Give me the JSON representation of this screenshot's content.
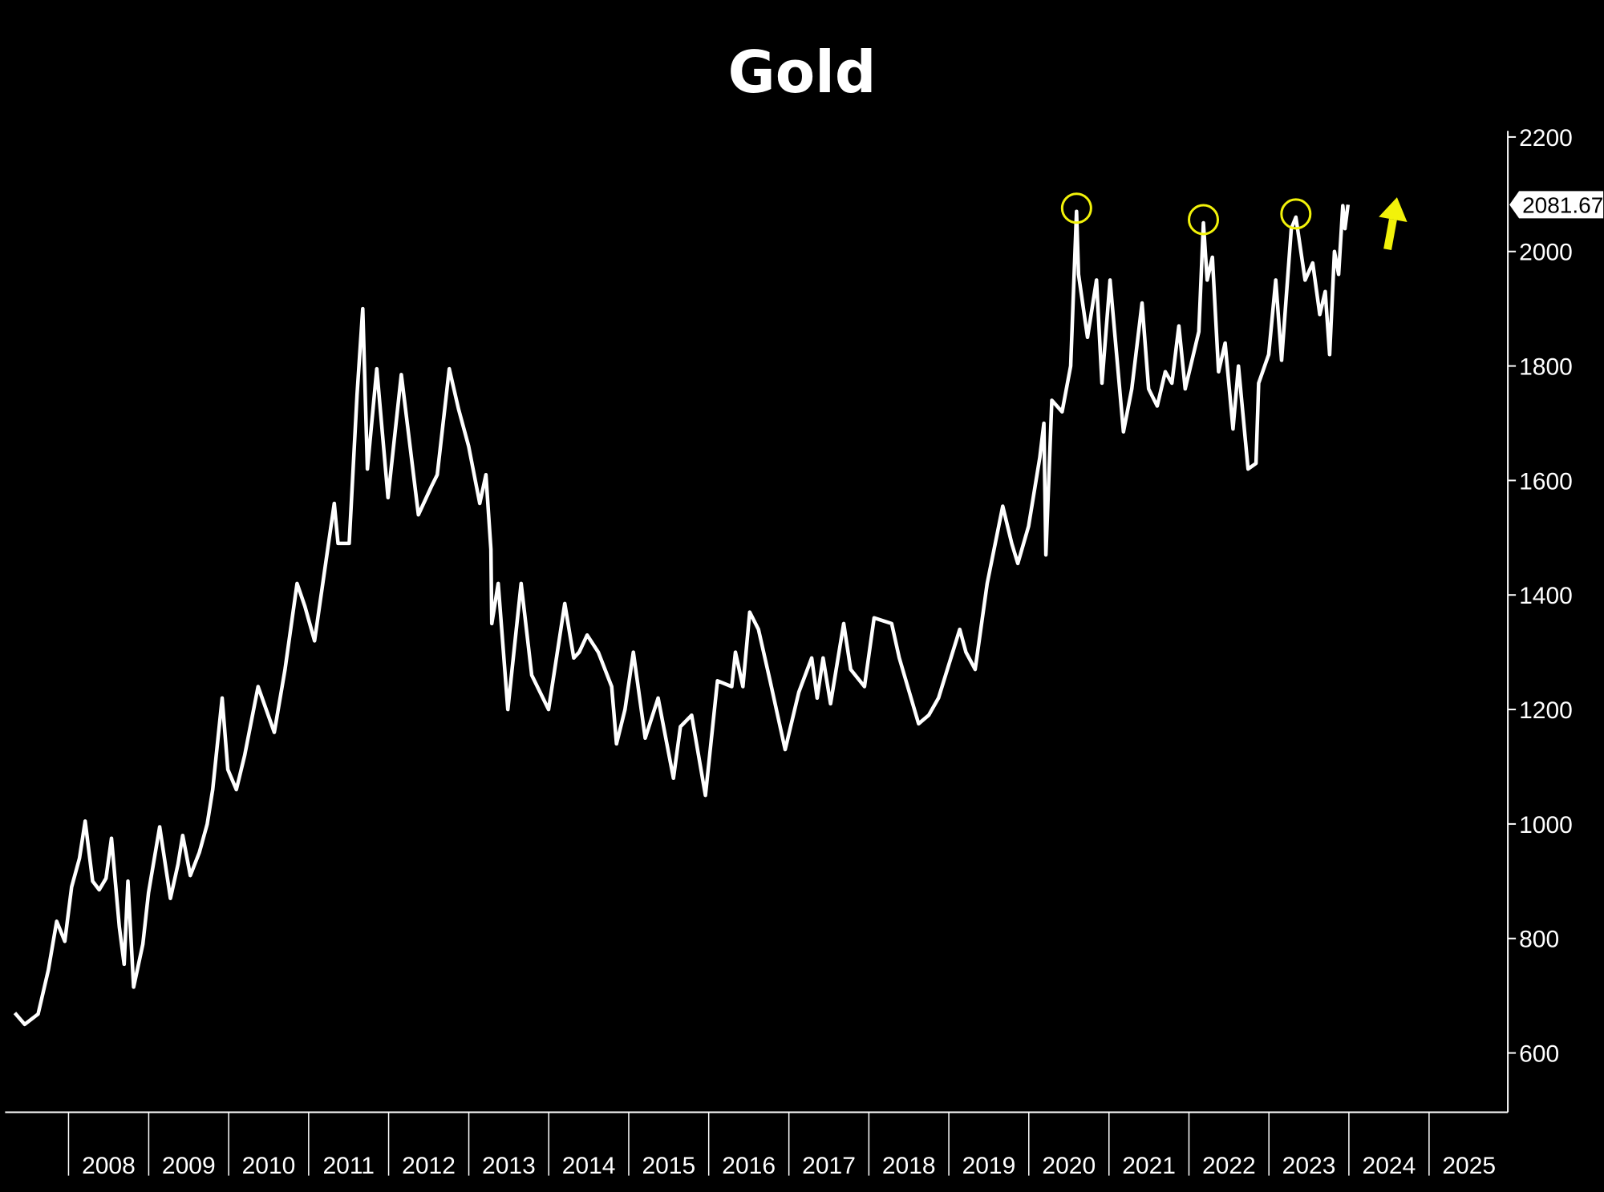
{
  "chart_data": {
    "type": "line",
    "title": "Gold",
    "xlabel": "",
    "ylabel": "",
    "x_range": [
      "2007-05-01",
      "2025-12-31"
    ],
    "ylim": [
      500,
      2230
    ],
    "y_ticks": [
      600,
      800,
      1000,
      1200,
      1400,
      1600,
      1800,
      2000,
      2200
    ],
    "x_tick_labels": [
      "2008",
      "2009",
      "2010",
      "2011",
      "2012",
      "2013",
      "2014",
      "2015",
      "2016",
      "2017",
      "2018",
      "2019",
      "2020",
      "2021",
      "2022",
      "2023",
      "2024",
      "2025"
    ],
    "y_axis_side": "right",
    "grid": false,
    "last_value_label": "2081.67",
    "series": [
      {
        "color": "#ffffff",
        "points": [
          [
            "2007-05-01",
            670
          ],
          [
            "2007-06-15",
            650
          ],
          [
            "2007-08-15",
            668
          ],
          [
            "2007-10-01",
            745
          ],
          [
            "2007-11-08",
            830
          ],
          [
            "2007-12-15",
            795
          ],
          [
            "2008-01-15",
            890
          ],
          [
            "2008-02-20",
            940
          ],
          [
            "2008-03-17",
            1005
          ],
          [
            "2008-04-20",
            900
          ],
          [
            "2008-05-20",
            885
          ],
          [
            "2008-06-20",
            905
          ],
          [
            "2008-07-15",
            975
          ],
          [
            "2008-08-20",
            820
          ],
          [
            "2008-09-11",
            755
          ],
          [
            "2008-09-28",
            900
          ],
          [
            "2008-10-24",
            715
          ],
          [
            "2008-11-10",
            745
          ],
          [
            "2008-12-05",
            790
          ],
          [
            "2008-12-31",
            880
          ],
          [
            "2009-02-20",
            995
          ],
          [
            "2009-04-10",
            870
          ],
          [
            "2009-05-15",
            930
          ],
          [
            "2009-06-05",
            980
          ],
          [
            "2009-07-10",
            910
          ],
          [
            "2009-08-20",
            950
          ],
          [
            "2009-09-25",
            1000
          ],
          [
            "2009-10-20",
            1060
          ],
          [
            "2009-12-02",
            1220
          ],
          [
            "2009-12-28",
            1095
          ],
          [
            "2010-02-05",
            1060
          ],
          [
            "2010-03-15",
            1120
          ],
          [
            "2010-05-15",
            1240
          ],
          [
            "2010-07-28",
            1160
          ],
          [
            "2010-09-15",
            1270
          ],
          [
            "2010-11-09",
            1420
          ],
          [
            "2010-12-15",
            1380
          ],
          [
            "2011-01-28",
            1320
          ],
          [
            "2011-04-28",
            1560
          ],
          [
            "2011-05-15",
            1490
          ],
          [
            "2011-07-05",
            1490
          ],
          [
            "2011-08-10",
            1750
          ],
          [
            "2011-09-05",
            1900
          ],
          [
            "2011-09-26",
            1620
          ],
          [
            "2011-11-08",
            1795
          ],
          [
            "2011-12-29",
            1570
          ],
          [
            "2012-02-28",
            1785
          ],
          [
            "2012-05-16",
            1540
          ],
          [
            "2012-07-15",
            1590
          ],
          [
            "2012-08-10",
            1610
          ],
          [
            "2012-10-04",
            1795
          ],
          [
            "2012-11-15",
            1725
          ],
          [
            "2012-12-31",
            1660
          ],
          [
            "2013-02-20",
            1560
          ],
          [
            "2013-03-20",
            1610
          ],
          [
            "2013-04-12",
            1480
          ],
          [
            "2013-04-16",
            1350
          ],
          [
            "2013-05-15",
            1420
          ],
          [
            "2013-06-28",
            1200
          ],
          [
            "2013-08-28",
            1420
          ],
          [
            "2013-10-15",
            1260
          ],
          [
            "2013-12-31",
            1200
          ],
          [
            "2014-03-15",
            1385
          ],
          [
            "2014-04-25",
            1290
          ],
          [
            "2014-05-20",
            1300
          ],
          [
            "2014-06-25",
            1330
          ],
          [
            "2014-08-15",
            1300
          ],
          [
            "2014-10-15",
            1240
          ],
          [
            "2014-11-06",
            1140
          ],
          [
            "2014-12-15",
            1200
          ],
          [
            "2015-01-22",
            1300
          ],
          [
            "2015-03-17",
            1150
          ],
          [
            "2015-05-15",
            1220
          ],
          [
            "2015-07-24",
            1080
          ],
          [
            "2015-08-25",
            1170
          ],
          [
            "2015-10-15",
            1190
          ],
          [
            "2015-12-17",
            1050
          ],
          [
            "2016-02-10",
            1250
          ],
          [
            "2016-04-15",
            1240
          ],
          [
            "2016-05-02",
            1300
          ],
          [
            "2016-06-05",
            1240
          ],
          [
            "2016-07-06",
            1370
          ],
          [
            "2016-08-15",
            1340
          ],
          [
            "2016-10-07",
            1250
          ],
          [
            "2016-12-15",
            1130
          ],
          [
            "2017-02-15",
            1230
          ],
          [
            "2017-04-15",
            1290
          ],
          [
            "2017-05-10",
            1220
          ],
          [
            "2017-06-06",
            1290
          ],
          [
            "2017-07-10",
            1210
          ],
          [
            "2017-09-08",
            1350
          ],
          [
            "2017-10-10",
            1270
          ],
          [
            "2017-12-12",
            1240
          ],
          [
            "2018-01-25",
            1360
          ],
          [
            "2018-04-15",
            1350
          ],
          [
            "2018-05-20",
            1290
          ],
          [
            "2018-08-16",
            1175
          ],
          [
            "2018-10-01",
            1190
          ],
          [
            "2018-11-15",
            1220
          ],
          [
            "2019-02-20",
            1340
          ],
          [
            "2019-03-20",
            1300
          ],
          [
            "2019-05-01",
            1270
          ],
          [
            "2019-06-25",
            1420
          ],
          [
            "2019-09-04",
            1555
          ],
          [
            "2019-10-15",
            1490
          ],
          [
            "2019-11-12",
            1455
          ],
          [
            "2019-12-31",
            1520
          ],
          [
            "2020-02-20",
            1640
          ],
          [
            "2020-03-10",
            1700
          ],
          [
            "2020-03-19",
            1470
          ],
          [
            "2020-04-15",
            1740
          ],
          [
            "2020-06-01",
            1720
          ],
          [
            "2020-07-10",
            1800
          ],
          [
            "2020-08-06",
            2070
          ],
          [
            "2020-08-15",
            1960
          ],
          [
            "2020-09-25",
            1850
          ],
          [
            "2020-11-05",
            1950
          ],
          [
            "2020-11-30",
            1770
          ],
          [
            "2021-01-06",
            1950
          ],
          [
            "2021-03-08",
            1685
          ],
          [
            "2021-04-15",
            1760
          ],
          [
            "2021-06-01",
            1910
          ],
          [
            "2021-07-01",
            1760
          ],
          [
            "2021-08-09",
            1730
          ],
          [
            "2021-09-15",
            1790
          ],
          [
            "2021-10-15",
            1770
          ],
          [
            "2021-11-16",
            1870
          ],
          [
            "2021-12-15",
            1760
          ],
          [
            "2022-02-15",
            1860
          ],
          [
            "2022-03-08",
            2050
          ],
          [
            "2022-03-25",
            1950
          ],
          [
            "2022-04-18",
            1990
          ],
          [
            "2022-05-16",
            1790
          ],
          [
            "2022-06-15",
            1840
          ],
          [
            "2022-07-21",
            1690
          ],
          [
            "2022-08-15",
            1800
          ],
          [
            "2022-09-28",
            1620
          ],
          [
            "2022-11-03",
            1630
          ],
          [
            "2022-11-15",
            1770
          ],
          [
            "2022-12-31",
            1820
          ],
          [
            "2023-02-01",
            1950
          ],
          [
            "2023-02-28",
            1810
          ],
          [
            "2023-04-13",
            2040
          ],
          [
            "2023-05-04",
            2060
          ],
          [
            "2023-06-15",
            1950
          ],
          [
            "2023-07-20",
            1980
          ],
          [
            "2023-08-21",
            1890
          ],
          [
            "2023-09-15",
            1930
          ],
          [
            "2023-10-05",
            1820
          ],
          [
            "2023-10-27",
            2000
          ],
          [
            "2023-11-15",
            1960
          ],
          [
            "2023-12-04",
            2080
          ],
          [
            "2023-12-14",
            2040
          ],
          [
            "2023-12-28",
            2081.67
          ]
        ]
      }
    ],
    "annotations": [
      {
        "type": "circle",
        "date": "2020-08-06",
        "value": 2070,
        "color": "#f2f20a"
      },
      {
        "type": "circle",
        "date": "2022-03-08",
        "value": 2050,
        "color": "#f2f20a"
      },
      {
        "type": "circle",
        "date": "2023-05-04",
        "value": 2060,
        "color": "#f2f20a"
      },
      {
        "type": "arrow-up",
        "date": "2024-07-15",
        "value": 2045,
        "color": "#f2f20a"
      }
    ]
  }
}
